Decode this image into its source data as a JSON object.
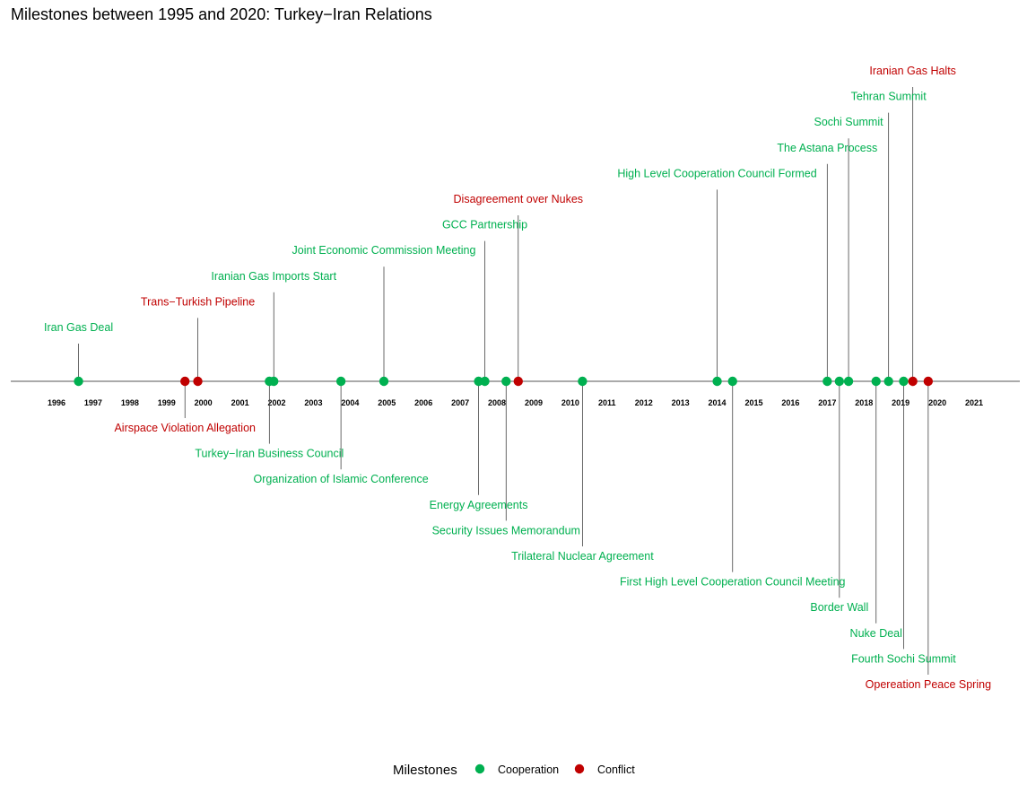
{
  "chart_data": {
    "type": "timeline",
    "title": "Milestones between 1995 and 2020: Turkey−Iran Relations",
    "colors": {
      "Cooperation": "#00b050",
      "Conflict": "#c00000"
    },
    "x_ticks": [
      1996,
      1997,
      1998,
      1999,
      2000,
      2001,
      2002,
      2003,
      2004,
      2005,
      2006,
      2007,
      2008,
      2009,
      2010,
      2011,
      2012,
      2013,
      2014,
      2015,
      2016,
      2017,
      2018,
      2019,
      2020,
      2021
    ],
    "xlim": [
      1994.2,
      2022.3
    ],
    "legend": {
      "title": "Milestones",
      "position": "bottom",
      "items": [
        {
          "label": "Cooperation",
          "type": "Cooperation"
        },
        {
          "label": "Conflict",
          "type": "Conflict"
        }
      ]
    },
    "events": [
      {
        "label": "Iran Gas Deal",
        "date": 1996.6,
        "type": "Cooperation",
        "level": 2
      },
      {
        "label": "Airspace Violation Allegation",
        "date": 1999.5,
        "type": "Conflict",
        "level": -2
      },
      {
        "label": "Trans−Turkish Pipeline",
        "date": 1999.85,
        "type": "Conflict",
        "level": 3
      },
      {
        "label": "Turkey−Iran Business Council",
        "date": 2001.8,
        "type": "Cooperation",
        "level": -3
      },
      {
        "label": "Iranian Gas Imports Start",
        "date": 2001.92,
        "type": "Cooperation",
        "level": 4
      },
      {
        "label": "Organization of Islamic Conference",
        "date": 2003.75,
        "type": "Cooperation",
        "level": -4
      },
      {
        "label": "Joint Economic Commission Meeting",
        "date": 2004.92,
        "type": "Cooperation",
        "level": 5
      },
      {
        "label": "Energy Agreements",
        "date": 2007.5,
        "type": "Cooperation",
        "level": -5
      },
      {
        "label": "GCC Partnership",
        "date": 2007.67,
        "type": "Cooperation",
        "level": 6
      },
      {
        "label": "Security Issues Memorandum",
        "date": 2008.25,
        "type": "Cooperation",
        "level": -6
      },
      {
        "label": "Disagreement over Nukes",
        "date": 2008.58,
        "type": "Conflict",
        "level": 7
      },
      {
        "label": "Trilateral Nuclear Agreement",
        "date": 2010.33,
        "type": "Cooperation",
        "level": -7
      },
      {
        "label": "High Level Cooperation Council Formed",
        "date": 2014.0,
        "type": "Cooperation",
        "level": 8
      },
      {
        "label": "First High Level Cooperation Council Meeting",
        "date": 2014.42,
        "type": "Cooperation",
        "level": -8
      },
      {
        "label": "The Astana Process",
        "date": 2017.0,
        "type": "Cooperation",
        "level": 9
      },
      {
        "label": "Border Wall",
        "date": 2017.33,
        "type": "Cooperation",
        "level": -9
      },
      {
        "label": "Sochi Summit",
        "date": 2017.58,
        "type": "Cooperation",
        "level": 10
      },
      {
        "label": "Nuke Deal",
        "date": 2018.33,
        "type": "Cooperation",
        "level": -10
      },
      {
        "label": "Tehran Summit",
        "date": 2018.67,
        "type": "Cooperation",
        "level": 11
      },
      {
        "label": "Fourth Sochi Summit",
        "date": 2019.08,
        "type": "Cooperation",
        "level": -11
      },
      {
        "label": "Iranian Gas Halts",
        "date": 2019.33,
        "type": "Conflict",
        "level": 12
      },
      {
        "label": "Opereation Peace Spring",
        "date": 2019.75,
        "type": "Conflict",
        "level": -12
      }
    ]
  }
}
